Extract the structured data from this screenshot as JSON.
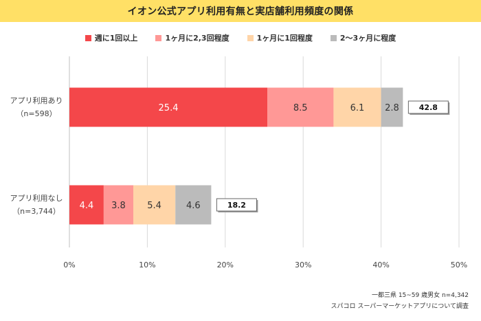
{
  "chart_data": {
    "type": "bar",
    "orientation": "horizontal",
    "stacked": true,
    "title": "イオン公式アプリ利用有無と実店舗利用頻度の関係",
    "categories": [
      {
        "line1": "アプリ利用あり",
        "line2": "（n=598）"
      },
      {
        "line1": "アプリ利用なし",
        "line2": "（n=3,744）"
      }
    ],
    "series": [
      {
        "name": "週に1回以上",
        "color": "#f4474a",
        "text_color": "#ffffff",
        "values": [
          25.4,
          4.4
        ]
      },
      {
        "name": "1ヶ月に2,3回程度",
        "color": "#ff9896",
        "text_color": "#333333",
        "values": [
          8.5,
          3.8
        ]
      },
      {
        "name": "1ヶ月に1回程度",
        "color": "#ffd5a8",
        "text_color": "#333333",
        "values": [
          6.1,
          5.4
        ]
      },
      {
        "name": "2〜3ヶ月に程度",
        "color": "#bbbbbb",
        "text_color": "#333333",
        "values": [
          2.8,
          4.6
        ]
      }
    ],
    "totals": [
      "42.8",
      "18.2"
    ],
    "x_ticks": [
      "0%",
      "10%",
      "20%",
      "30%",
      "40%",
      "50%"
    ],
    "xlim": [
      0,
      50
    ],
    "grid": true,
    "legend_position": "top"
  },
  "footnote": {
    "line1": "一都三県 15~59 歳男女 n=4,342",
    "line2": "スパコロ スーパーマーケットアプリについて調査"
  },
  "colors": {
    "title_background": "#ffe066",
    "gridline": "#d9d9d9"
  }
}
